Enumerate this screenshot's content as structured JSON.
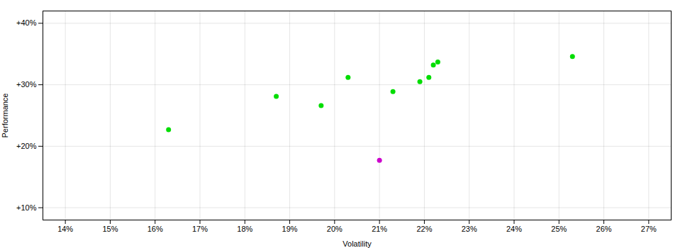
{
  "chart_data": {
    "type": "scatter",
    "xlabel": "Volatility",
    "ylabel": "Performance",
    "xlim": [
      0.135,
      0.275
    ],
    "ylim": [
      0.08,
      0.42
    ],
    "xticks": [
      {
        "value": 0.14,
        "label": "14%"
      },
      {
        "value": 0.15,
        "label": "15%"
      },
      {
        "value": 0.16,
        "label": "16%"
      },
      {
        "value": 0.17,
        "label": "17%"
      },
      {
        "value": 0.18,
        "label": "18%"
      },
      {
        "value": 0.19,
        "label": "19%"
      },
      {
        "value": 0.2,
        "label": "20%"
      },
      {
        "value": 0.21,
        "label": "21%"
      },
      {
        "value": 0.22,
        "label": "22%"
      },
      {
        "value": 0.23,
        "label": "23%"
      },
      {
        "value": 0.24,
        "label": "24%"
      },
      {
        "value": 0.25,
        "label": "25%"
      },
      {
        "value": 0.26,
        "label": "26%"
      },
      {
        "value": 0.27,
        "label": "27%"
      }
    ],
    "yticks": [
      {
        "value": 0.1,
        "label": "+10%"
      },
      {
        "value": 0.2,
        "label": "+20%"
      },
      {
        "value": 0.3,
        "label": "+30%"
      },
      {
        "value": 0.4,
        "label": "+40%"
      }
    ],
    "grid": true,
    "series": [
      {
        "color": "#00dd00",
        "x": [
          0.163,
          0.187,
          0.197,
          0.203,
          0.213,
          0.219,
          0.221,
          0.222,
          0.223,
          0.253
        ],
        "values": [
          0.227,
          0.281,
          0.266,
          0.312,
          0.289,
          0.305,
          0.312,
          0.332,
          0.337,
          0.346
        ]
      },
      {
        "color": "#cc00cc",
        "x": [
          0.21
        ],
        "values": [
          0.177
        ]
      }
    ]
  }
}
